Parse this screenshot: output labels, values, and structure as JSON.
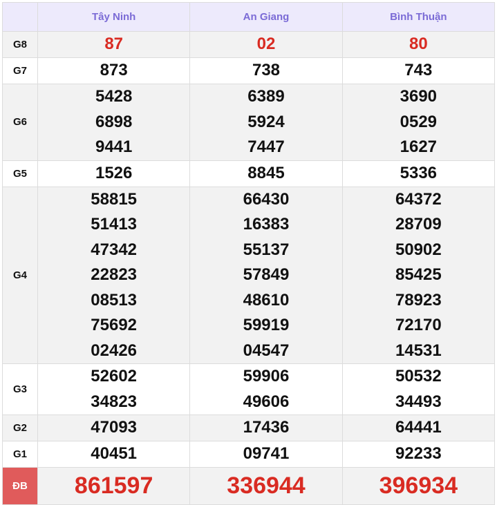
{
  "provinces": [
    "Tây Ninh",
    "An Giang",
    "Bình Thuận"
  ],
  "rows": [
    {
      "label": "G8",
      "values": [
        [
          "87"
        ],
        [
          "02"
        ],
        [
          "80"
        ]
      ]
    },
    {
      "label": "G7",
      "values": [
        [
          "873"
        ],
        [
          "738"
        ],
        [
          "743"
        ]
      ]
    },
    {
      "label": "G6",
      "values": [
        [
          "5428",
          "6898",
          "9441"
        ],
        [
          "6389",
          "5924",
          "7447"
        ],
        [
          "3690",
          "0529",
          "1627"
        ]
      ]
    },
    {
      "label": "G5",
      "values": [
        [
          "1526"
        ],
        [
          "8845"
        ],
        [
          "5336"
        ]
      ]
    },
    {
      "label": "G4",
      "values": [
        [
          "58815",
          "51413",
          "47342",
          "22823",
          "08513",
          "75692",
          "02426"
        ],
        [
          "66430",
          "16383",
          "55137",
          "57849",
          "48610",
          "59919",
          "04547"
        ],
        [
          "64372",
          "28709",
          "50902",
          "85425",
          "78923",
          "72170",
          "14531"
        ]
      ]
    },
    {
      "label": "G3",
      "values": [
        [
          "52602",
          "34823"
        ],
        [
          "59906",
          "49606"
        ],
        [
          "50532",
          "34493"
        ]
      ]
    },
    {
      "label": "G2",
      "values": [
        [
          "47093"
        ],
        [
          "17436"
        ],
        [
          "64441"
        ]
      ]
    },
    {
      "label": "G1",
      "values": [
        [
          "40451"
        ],
        [
          "09741"
        ],
        [
          "92233"
        ]
      ]
    },
    {
      "label": "ĐB",
      "values": [
        [
          "861597"
        ],
        [
          "336944"
        ],
        [
          "396934"
        ]
      ]
    }
  ],
  "colors": {
    "header_text": "#7b6bd6",
    "highlight": "#d92b22",
    "db_label_bg": "#e05b5b"
  }
}
